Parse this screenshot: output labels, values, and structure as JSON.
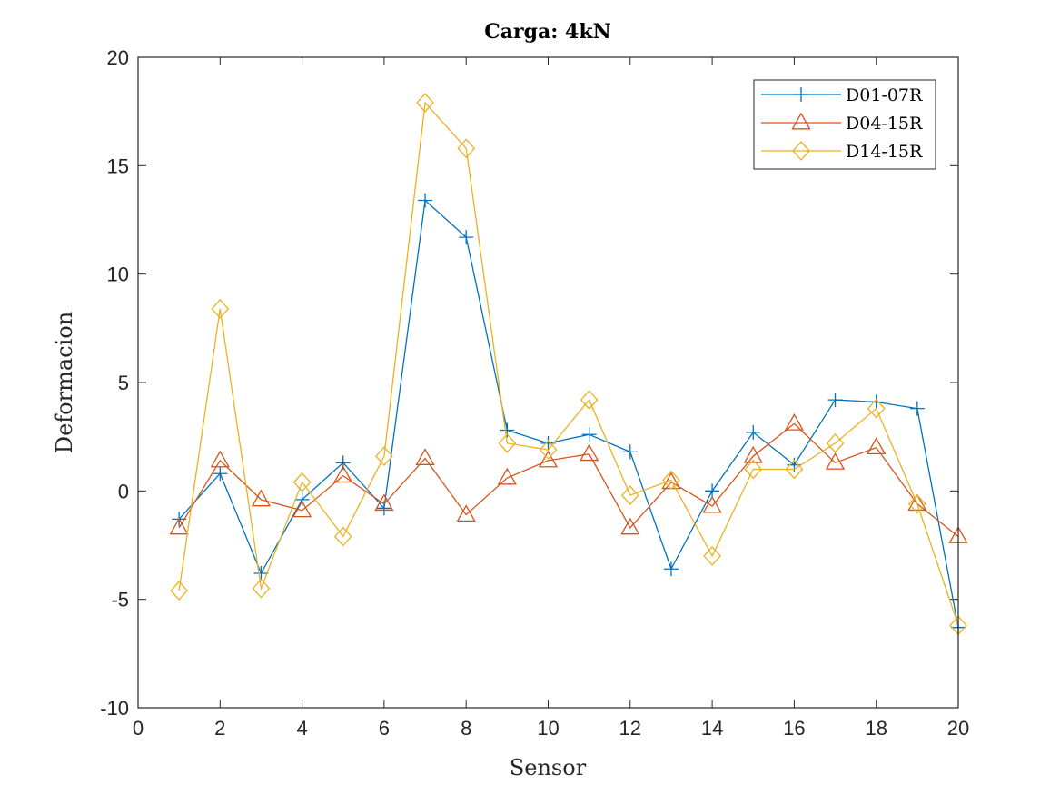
{
  "chart_data": {
    "type": "line",
    "title": "Carga:  4kN",
    "xlabel": "Sensor",
    "ylabel": "Deformacion",
    "xlim": [
      0,
      20
    ],
    "ylim": [
      -10,
      20
    ],
    "xticks": [
      "0",
      "2",
      "4",
      "6",
      "8",
      "10",
      "12",
      "14",
      "16",
      "18",
      "20"
    ],
    "yticks": [
      "-10",
      "-5",
      "0",
      "5",
      "10",
      "15",
      "20"
    ],
    "grid": false,
    "legend_position": "top-right",
    "x": [
      1,
      2,
      3,
      4,
      5,
      6,
      7,
      8,
      9,
      10,
      11,
      12,
      13,
      14,
      15,
      16,
      17,
      18,
      19,
      20
    ],
    "series": [
      {
        "name": "D01-07R",
        "marker": "plus",
        "color": "#0072BD",
        "values": [
          -1.3,
          0.8,
          -3.8,
          -0.4,
          1.3,
          -0.8,
          13.4,
          11.7,
          2.8,
          2.2,
          2.6,
          1.8,
          -3.6,
          0.0,
          2.7,
          1.2,
          4.2,
          4.1,
          3.8,
          -6.3
        ]
      },
      {
        "name": "D04-15R",
        "marker": "triangle",
        "color": "#D95319",
        "values": [
          -1.7,
          1.4,
          -0.4,
          -0.9,
          0.7,
          -0.6,
          1.5,
          -1.1,
          0.6,
          1.4,
          1.7,
          -1.7,
          0.4,
          -0.7,
          1.6,
          3.1,
          1.3,
          2.0,
          -0.6,
          -2.1
        ]
      },
      {
        "name": "D14-15R",
        "marker": "diamond",
        "color": "#EDB120",
        "values": [
          -4.6,
          8.4,
          -4.5,
          0.4,
          -2.1,
          1.6,
          17.9,
          15.8,
          2.2,
          1.9,
          4.2,
          -0.2,
          0.5,
          -3.0,
          1.0,
          1.0,
          2.2,
          3.8,
          -0.6,
          -6.2
        ]
      }
    ]
  }
}
